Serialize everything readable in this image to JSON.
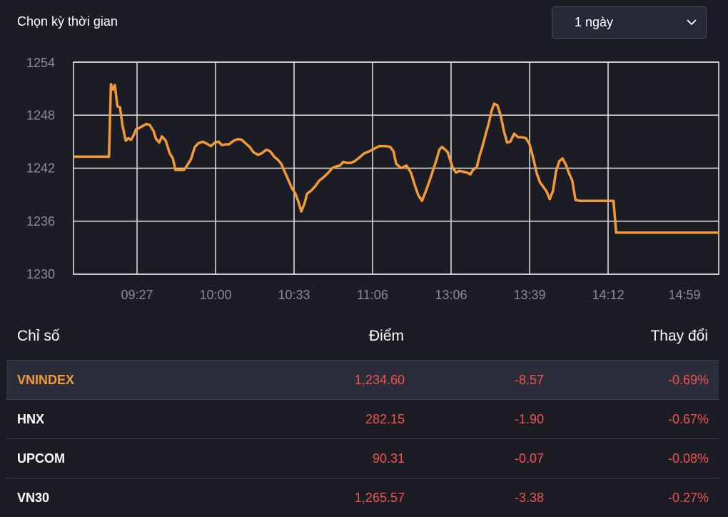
{
  "header": {
    "period_label": "Chọn kỳ thời gian",
    "period_value": "1 ngày"
  },
  "colors": {
    "line": "#f29a38",
    "negative": "#ef5350",
    "grid": "#e6e6e6",
    "background": "#1c1c24"
  },
  "chart_data": {
    "type": "line",
    "title": "",
    "xlabel": "",
    "ylabel": "",
    "ylim": [
      1230,
      1254
    ],
    "yticks": [
      1254,
      1248,
      1242,
      1236,
      1230
    ],
    "xticks": [
      "09:27",
      "10:00",
      "10:33",
      "11:06",
      "13:06",
      "13:39",
      "14:12",
      "14:59"
    ],
    "grid": true,
    "series": [
      {
        "name": "VNINDEX",
        "x_note": "",
        "points": [
          [
            0.0,
            1243.3
          ],
          [
            0.055,
            1243.3
          ],
          [
            0.058,
            1251.5
          ],
          [
            0.061,
            1250.9
          ],
          [
            0.064,
            1251.4
          ],
          [
            0.068,
            1249.0
          ],
          [
            0.072,
            1248.9
          ],
          [
            0.076,
            1246.8
          ],
          [
            0.081,
            1245.1
          ],
          [
            0.085,
            1245.4
          ],
          [
            0.089,
            1245.2
          ],
          [
            0.093,
            1245.7
          ],
          [
            0.097,
            1246.4
          ],
          [
            0.101,
            1246.5
          ],
          [
            0.108,
            1246.8
          ],
          [
            0.113,
            1247.0
          ],
          [
            0.118,
            1246.9
          ],
          [
            0.124,
            1246.2
          ],
          [
            0.128,
            1245.3
          ],
          [
            0.133,
            1244.9
          ],
          [
            0.137,
            1245.6
          ],
          [
            0.143,
            1245.1
          ],
          [
            0.149,
            1243.7
          ],
          [
            0.154,
            1243.1
          ],
          [
            0.158,
            1241.8
          ],
          [
            0.165,
            1241.8
          ],
          [
            0.171,
            1241.8
          ],
          [
            0.176,
            1242.3
          ],
          [
            0.182,
            1243.0
          ],
          [
            0.188,
            1244.4
          ],
          [
            0.193,
            1244.8
          ],
          [
            0.2,
            1245.0
          ],
          [
            0.206,
            1244.8
          ],
          [
            0.213,
            1244.5
          ],
          [
            0.219,
            1244.9
          ],
          [
            0.225,
            1245.0
          ],
          [
            0.23,
            1244.6
          ],
          [
            0.236,
            1244.7
          ],
          [
            0.241,
            1244.7
          ],
          [
            0.248,
            1245.1
          ],
          [
            0.255,
            1245.3
          ],
          [
            0.261,
            1245.2
          ],
          [
            0.267,
            1244.8
          ],
          [
            0.273,
            1244.4
          ],
          [
            0.279,
            1243.8
          ],
          [
            0.286,
            1243.5
          ],
          [
            0.292,
            1243.7
          ],
          [
            0.299,
            1244.1
          ],
          [
            0.305,
            1243.9
          ],
          [
            0.311,
            1243.3
          ],
          [
            0.316,
            1243.0
          ],
          [
            0.322,
            1242.5
          ],
          [
            0.331,
            1241.0
          ],
          [
            0.338,
            1239.8
          ],
          [
            0.344,
            1239.1
          ],
          [
            0.349,
            1238.1
          ],
          [
            0.353,
            1237.1
          ],
          [
            0.358,
            1238.0
          ],
          [
            0.362,
            1239.1
          ],
          [
            0.369,
            1239.5
          ],
          [
            0.375,
            1240.0
          ],
          [
            0.381,
            1240.6
          ],
          [
            0.388,
            1241.0
          ],
          [
            0.395,
            1241.5
          ],
          [
            0.401,
            1242.0
          ],
          [
            0.407,
            1242.2
          ],
          [
            0.413,
            1242.3
          ],
          [
            0.418,
            1242.7
          ],
          [
            0.424,
            1242.6
          ],
          [
            0.43,
            1242.6
          ],
          [
            0.436,
            1242.8
          ],
          [
            0.443,
            1243.2
          ],
          [
            0.451,
            1243.7
          ],
          [
            0.458,
            1243.9
          ],
          [
            0.466,
            1244.2
          ],
          [
            0.474,
            1244.5
          ],
          [
            0.484,
            1244.5
          ],
          [
            0.491,
            1244.4
          ],
          [
            0.496,
            1243.9
          ],
          [
            0.5,
            1242.5
          ],
          [
            0.508,
            1242.0
          ],
          [
            0.516,
            1242.3
          ],
          [
            0.523,
            1241.5
          ],
          [
            0.528,
            1240.3
          ],
          [
            0.534,
            1239.0
          ],
          [
            0.54,
            1238.3
          ],
          [
            0.546,
            1239.4
          ],
          [
            0.552,
            1240.6
          ],
          [
            0.557,
            1241.7
          ],
          [
            0.562,
            1242.8
          ],
          [
            0.567,
            1244.1
          ],
          [
            0.571,
            1244.4
          ],
          [
            0.576,
            1244.1
          ],
          [
            0.58,
            1243.8
          ],
          [
            0.584,
            1242.9
          ],
          [
            0.588,
            1242.0
          ],
          [
            0.593,
            1241.5
          ],
          [
            0.598,
            1241.7
          ],
          [
            0.604,
            1241.6
          ],
          [
            0.61,
            1241.5
          ],
          [
            0.615,
            1241.3
          ],
          [
            0.619,
            1241.8
          ],
          [
            0.625,
            1242.1
          ],
          [
            0.629,
            1243.3
          ],
          [
            0.634,
            1244.5
          ],
          [
            0.639,
            1245.9
          ],
          [
            0.644,
            1247.2
          ],
          [
            0.648,
            1248.5
          ],
          [
            0.652,
            1249.3
          ],
          [
            0.657,
            1249.1
          ],
          [
            0.662,
            1248.0
          ],
          [
            0.667,
            1246.2
          ],
          [
            0.672,
            1244.9
          ],
          [
            0.677,
            1245.0
          ],
          [
            0.683,
            1245.9
          ],
          [
            0.689,
            1245.5
          ],
          [
            0.695,
            1245.5
          ],
          [
            0.701,
            1245.4
          ],
          [
            0.707,
            1244.7
          ],
          [
            0.712,
            1243.3
          ],
          [
            0.718,
            1241.4
          ],
          [
            0.723,
            1240.4
          ],
          [
            0.728,
            1239.9
          ],
          [
            0.733,
            1239.4
          ],
          [
            0.738,
            1238.5
          ],
          [
            0.743,
            1239.4
          ],
          [
            0.748,
            1241.7
          ],
          [
            0.753,
            1242.8
          ],
          [
            0.758,
            1243.1
          ],
          [
            0.763,
            1242.4
          ],
          [
            0.768,
            1241.4
          ],
          [
            0.773,
            1240.6
          ],
          [
            0.778,
            1238.4
          ],
          [
            0.785,
            1238.3
          ],
          [
            0.8,
            1238.3
          ],
          [
            0.82,
            1238.3
          ],
          [
            0.837,
            1238.3
          ],
          [
            0.841,
            1234.7
          ],
          [
            0.86,
            1234.7
          ],
          [
            1.0,
            1234.7
          ]
        ]
      }
    ]
  },
  "table": {
    "headers": {
      "name": "Chỉ số",
      "points": "Điểm",
      "change": "Thay đổi"
    },
    "rows": [
      {
        "name": "VNINDEX",
        "points": "1,234.60",
        "change": "-8.57",
        "pct": "-0.69%"
      },
      {
        "name": "HNX",
        "points": "282.15",
        "change": "-1.90",
        "pct": "-0.67%"
      },
      {
        "name": "UPCOM",
        "points": "90.31",
        "change": "-0.07",
        "pct": "-0.08%"
      },
      {
        "name": "VN30",
        "points": "1,265.57",
        "change": "-3.38",
        "pct": "-0.27%"
      }
    ]
  }
}
